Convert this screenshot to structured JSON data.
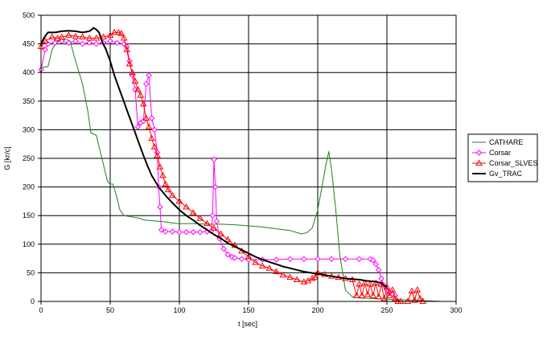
{
  "chart_data": {
    "type": "line",
    "title": "",
    "xlabel": "t [sec]",
    "ylabel": "G [kг/с]",
    "xlim": [
      0,
      300
    ],
    "ylim": [
      0,
      500
    ],
    "x_ticks": [
      "0",
      "50",
      "100",
      "150",
      "200",
      "250",
      "300"
    ],
    "y_ticks": [
      "0",
      "50",
      "100",
      "150",
      "200",
      "250",
      "300",
      "350",
      "400",
      "450",
      "500"
    ],
    "grid": true,
    "legend_position": "right",
    "series": [
      {
        "name": "CATHARE",
        "color": "#208020",
        "marker": "none",
        "width": 1,
        "points": [
          [
            0,
            405
          ],
          [
            2,
            410
          ],
          [
            5,
            410
          ],
          [
            8,
            440
          ],
          [
            12,
            455
          ],
          [
            18,
            458
          ],
          [
            21,
            455
          ],
          [
            25,
            420
          ],
          [
            30,
            380
          ],
          [
            34,
            330
          ],
          [
            36,
            295
          ],
          [
            40,
            290
          ],
          [
            42,
            270
          ],
          [
            45,
            240
          ],
          [
            48,
            210
          ],
          [
            50,
            205
          ],
          [
            52,
            205
          ],
          [
            55,
            180
          ],
          [
            57,
            160
          ],
          [
            60,
            150
          ],
          [
            65,
            148
          ],
          [
            70,
            146
          ],
          [
            75,
            142
          ],
          [
            80,
            141
          ],
          [
            85,
            140
          ],
          [
            90,
            139
          ],
          [
            95,
            137
          ],
          [
            100,
            136
          ],
          [
            110,
            136
          ],
          [
            120,
            135
          ],
          [
            130,
            135
          ],
          [
            140,
            134
          ],
          [
            150,
            132
          ],
          [
            160,
            130
          ],
          [
            170,
            127
          ],
          [
            180,
            124
          ],
          [
            188,
            118
          ],
          [
            192,
            120
          ],
          [
            196,
            128
          ],
          [
            200,
            160
          ],
          [
            203,
            200
          ],
          [
            206,
            240
          ],
          [
            208,
            262
          ],
          [
            210,
            230
          ],
          [
            213,
            160
          ],
          [
            216,
            80
          ],
          [
            220,
            20
          ],
          [
            225,
            8
          ],
          [
            230,
            6
          ],
          [
            240,
            5
          ],
          [
            250,
            4
          ],
          [
            260,
            3
          ],
          [
            270,
            2
          ],
          [
            280,
            1
          ],
          [
            290,
            0
          ],
          [
            300,
            0
          ]
        ]
      },
      {
        "name": "Corsar",
        "color": "#ff00ff",
        "marker": "diamond",
        "width": 1,
        "points": [
          [
            0,
            405
          ],
          [
            3,
            440
          ],
          [
            5,
            450
          ],
          [
            10,
            452
          ],
          [
            15,
            455
          ],
          [
            20,
            452
          ],
          [
            25,
            455
          ],
          [
            30,
            450
          ],
          [
            35,
            452
          ],
          [
            40,
            450
          ],
          [
            45,
            452
          ],
          [
            50,
            455
          ],
          [
            55,
            452
          ],
          [
            60,
            450
          ],
          [
            62,
            445
          ],
          [
            64,
            420
          ],
          [
            66,
            395
          ],
          [
            68,
            370
          ],
          [
            70,
            305
          ],
          [
            72,
            312
          ],
          [
            74,
            315
          ],
          [
            76,
            380
          ],
          [
            78,
            395
          ],
          [
            80,
            320
          ],
          [
            82,
            300
          ],
          [
            84,
            260
          ],
          [
            85,
            200
          ],
          [
            86,
            165
          ],
          [
            87,
            125
          ],
          [
            90,
            122
          ],
          [
            95,
            122
          ],
          [
            100,
            121
          ],
          [
            105,
            121
          ],
          [
            110,
            121
          ],
          [
            115,
            121
          ],
          [
            120,
            122
          ],
          [
            123,
            123
          ],
          [
            124,
            150
          ],
          [
            125,
            248
          ],
          [
            126,
            200
          ],
          [
            127,
            140
          ],
          [
            129,
            110
          ],
          [
            132,
            92
          ],
          [
            135,
            82
          ],
          [
            138,
            78
          ],
          [
            140,
            76
          ],
          [
            145,
            74
          ],
          [
            150,
            73
          ],
          [
            160,
            73
          ],
          [
            170,
            73
          ],
          [
            180,
            74
          ],
          [
            190,
            74
          ],
          [
            200,
            74
          ],
          [
            210,
            74
          ],
          [
            220,
            74
          ],
          [
            230,
            74
          ],
          [
            238,
            74
          ],
          [
            240,
            72
          ],
          [
            242,
            65
          ],
          [
            244,
            55
          ],
          [
            246,
            40
          ],
          [
            248,
            28
          ],
          [
            250,
            20
          ],
          [
            252,
            15
          ],
          [
            254,
            12
          ],
          [
            256,
            10
          ]
        ]
      },
      {
        "name": "Corsar_SLVES",
        "color": "#ff0000",
        "marker": "triangle",
        "width": 1,
        "points": [
          [
            0,
            445
          ],
          [
            3,
            455
          ],
          [
            8,
            462
          ],
          [
            12,
            460
          ],
          [
            15,
            462
          ],
          [
            20,
            465
          ],
          [
            25,
            463
          ],
          [
            30,
            462
          ],
          [
            35,
            460
          ],
          [
            40,
            460
          ],
          [
            45,
            462
          ],
          [
            50,
            465
          ],
          [
            53,
            470
          ],
          [
            56,
            470
          ],
          [
            58,
            468
          ],
          [
            60,
            460
          ],
          [
            62,
            440
          ],
          [
            64,
            415
          ],
          [
            66,
            400
          ],
          [
            68,
            385
          ],
          [
            70,
            370
          ],
          [
            72,
            360
          ],
          [
            74,
            345
          ],
          [
            76,
            320
          ],
          [
            78,
            305
          ],
          [
            80,
            285
          ],
          [
            82,
            270
          ],
          [
            84,
            255
          ],
          [
            86,
            235
          ],
          [
            88,
            220
          ],
          [
            90,
            205
          ],
          [
            92,
            195
          ],
          [
            95,
            185
          ],
          [
            100,
            175
          ],
          [
            105,
            165
          ],
          [
            110,
            155
          ],
          [
            115,
            145
          ],
          [
            120,
            136
          ],
          [
            125,
            128
          ],
          [
            130,
            118
          ],
          [
            135,
            108
          ],
          [
            140,
            98
          ],
          [
            145,
            88
          ],
          [
            150,
            78
          ],
          [
            155,
            68
          ],
          [
            160,
            62
          ],
          [
            165,
            58
          ],
          [
            170,
            52
          ],
          [
            175,
            46
          ],
          [
            180,
            42
          ],
          [
            185,
            38
          ],
          [
            190,
            34
          ],
          [
            193,
            36
          ],
          [
            196,
            40
          ],
          [
            198,
            42
          ],
          [
            200,
            50
          ],
          [
            205,
            47
          ],
          [
            210,
            44
          ],
          [
            215,
            42
          ],
          [
            220,
            40
          ],
          [
            225,
            38
          ],
          [
            228,
            10
          ],
          [
            230,
            30
          ],
          [
            232,
            10
          ],
          [
            234,
            32
          ],
          [
            236,
            12
          ],
          [
            238,
            30
          ],
          [
            240,
            10
          ],
          [
            242,
            32
          ],
          [
            244,
            8
          ],
          [
            246,
            30
          ],
          [
            248,
            5
          ],
          [
            250,
            25
          ],
          [
            252,
            10
          ],
          [
            254,
            20
          ],
          [
            256,
            5
          ],
          [
            258,
            0
          ],
          [
            260,
            0
          ],
          [
            265,
            0
          ],
          [
            268,
            18
          ],
          [
            270,
            2
          ],
          [
            272,
            20
          ],
          [
            274,
            5
          ],
          [
            276,
            0
          ]
        ]
      },
      {
        "name": "Gv_TRAC",
        "color": "#000000",
        "marker": "none",
        "width": 2,
        "points": [
          [
            0,
            450
          ],
          [
            2,
            460
          ],
          [
            5,
            470
          ],
          [
            10,
            470
          ],
          [
            15,
            472
          ],
          [
            20,
            473
          ],
          [
            25,
            472
          ],
          [
            30,
            470
          ],
          [
            35,
            472
          ],
          [
            38,
            478
          ],
          [
            40,
            475
          ],
          [
            42,
            470
          ],
          [
            44,
            455
          ],
          [
            47,
            440
          ],
          [
            50,
            420
          ],
          [
            53,
            395
          ],
          [
            56,
            375
          ],
          [
            59,
            355
          ],
          [
            62,
            335
          ],
          [
            65,
            315
          ],
          [
            68,
            295
          ],
          [
            71,
            275
          ],
          [
            74,
            255
          ],
          [
            77,
            237
          ],
          [
            80,
            220
          ],
          [
            85,
            200
          ],
          [
            90,
            185
          ],
          [
            95,
            172
          ],
          [
            100,
            160
          ],
          [
            105,
            150
          ],
          [
            110,
            142
          ],
          [
            115,
            133
          ],
          [
            120,
            125
          ],
          [
            125,
            117
          ],
          [
            130,
            110
          ],
          [
            135,
            102
          ],
          [
            140,
            96
          ],
          [
            145,
            90
          ],
          [
            150,
            84
          ],
          [
            155,
            78
          ],
          [
            160,
            73
          ],
          [
            165,
            69
          ],
          [
            170,
            65
          ],
          [
            175,
            61
          ],
          [
            180,
            58
          ],
          [
            185,
            55
          ],
          [
            190,
            52
          ],
          [
            195,
            50
          ],
          [
            200,
            48
          ],
          [
            205,
            46
          ],
          [
            210,
            44
          ],
          [
            215,
            42
          ],
          [
            220,
            40
          ],
          [
            225,
            39
          ],
          [
            230,
            38
          ],
          [
            235,
            36
          ],
          [
            240,
            35
          ],
          [
            243,
            34
          ],
          [
            246,
            32
          ],
          [
            248,
            28
          ],
          [
            250,
            25
          ]
        ]
      }
    ]
  }
}
